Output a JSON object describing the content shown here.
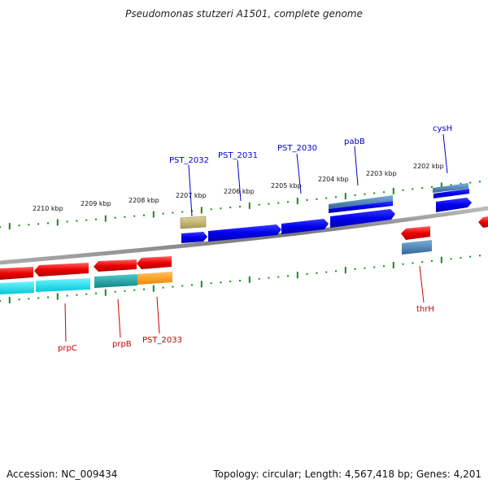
{
  "title": "Pseudomonas stutzeri A1501, complete genome",
  "footer": {
    "accession": "Accession: NC_009434",
    "topology": "Topology: circular; Length: 4,567,418 bp; Genes: 4,201"
  },
  "kbp_labels": [
    "2210 kbp",
    "2209 kbp",
    "2208 kbp",
    "2207 kbp",
    "2206 kbp",
    "2205 kbp",
    "2204 kbp",
    "2203 kbp",
    "2202 kbp"
  ],
  "gene_labels": {
    "pst_2032": "PST_2032",
    "pst_2031": "PST_2031",
    "pst_2030": "PST_2030",
    "pabb": "pabB",
    "cysh": "cysH",
    "prpc": "prpC",
    "prpb": "prpB",
    "pst_2033": "PST_2033",
    "thrh": "thrH"
  },
  "colors": {
    "forward_cds": "#0000ee",
    "reverse_cds": "#ee0000",
    "forward_label": "#0000cc",
    "reverse_label": "#cc0000",
    "backbone": "#888888",
    "ticks": "#1a8a1a",
    "cyan_track": "#00e5ee",
    "teal_track": "#20aaaa",
    "orange_track": "#ff9900",
    "olive_track": "#c8b870",
    "steel_track": "#4682b4"
  }
}
